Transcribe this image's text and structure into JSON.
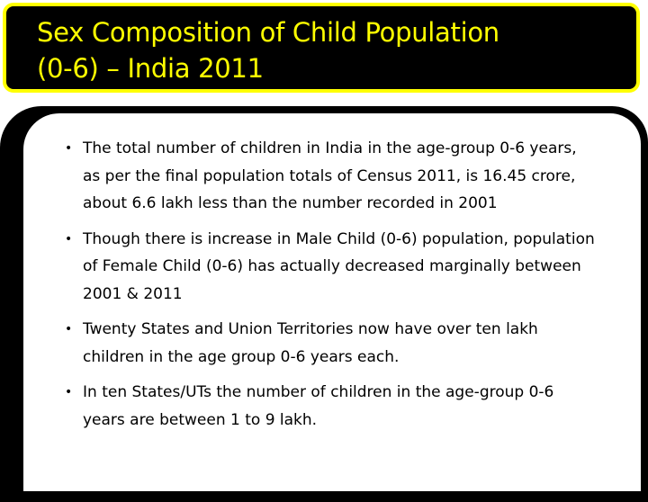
{
  "title": {
    "line1": "Sex Composition of Child Population",
    "line2": "(0-6) – India 2011"
  },
  "bullets": [
    "The total number of children in India in the age-group 0-6 years, as per the final population totals of Census 2011, is 16.45 crore, about 6.6 lakh less than the number recorded in 2001",
    "Though there is increase in Male Child (0-6) population, population of Female Child (0-6) has actually decreased marginally between 2001 & 2011",
    "Twenty States and Union Territories now have over ten lakh children in the age group 0-6 years each.",
    "In ten States/UTs the number of children in the age-group 0-6 years are between 1 to 9 lakh."
  ],
  "colors": {
    "title_text": "#ffff00",
    "title_background": "#000000",
    "title_border": "#ffff00"
  }
}
